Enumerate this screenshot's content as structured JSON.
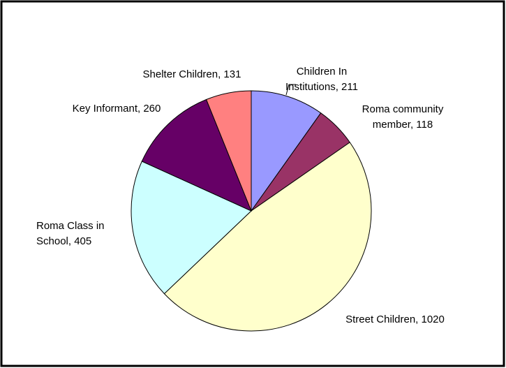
{
  "chart_data": {
    "type": "pie",
    "categories": [
      "Children In Institutions",
      "Roma community member",
      "Street Children",
      "Roma Class in School",
      "Key Informant",
      "Shelter Children"
    ],
    "values": [
      211,
      118,
      1020,
      405,
      260,
      131
    ],
    "value_labels": [
      "Children In\nInstitutions, 211",
      "Roma community\nmember, 118",
      "Street Children, 1020",
      "Roma Class in\nSchool, 405",
      "Key Informant, 260",
      "Shelter Children, 131"
    ],
    "colors": [
      "#9999ff",
      "#993366",
      "#ffffcc",
      "#ccffff",
      "#660066",
      "#ff8080"
    ]
  }
}
